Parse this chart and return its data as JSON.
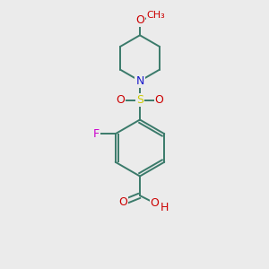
{
  "bg_color": "#ebebeb",
  "bond_color": "#3a7a6a",
  "bond_width": 1.4,
  "atom_colors": {
    "N": "#1a1acc",
    "O": "#cc0000",
    "S": "#cccc00",
    "F": "#cc00cc",
    "C": "#3a7a6a",
    "H": "#cc0000"
  },
  "figsize": [
    3.0,
    3.0
  ],
  "dpi": 100,
  "xlim": [
    0,
    10
  ],
  "ylim": [
    0,
    10
  ]
}
